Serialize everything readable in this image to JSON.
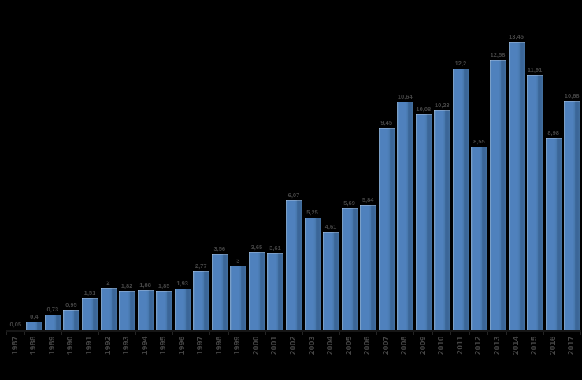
{
  "chart_data": {
    "type": "bar",
    "title": "",
    "xlabel": "",
    "ylabel": "",
    "ylim": [
      0,
      14
    ],
    "grid": false,
    "legend": null,
    "decimal_separator": ",",
    "categories": [
      "1987",
      "1988",
      "1989",
      "1990",
      "1991",
      "1992",
      "1993",
      "1994",
      "1995",
      "1996",
      "1997",
      "1998",
      "1999",
      "2000",
      "2001",
      "2002",
      "2003",
      "2004",
      "2005",
      "2006",
      "2007",
      "2008",
      "2009",
      "2010",
      "2011",
      "2012",
      "2013",
      "2014",
      "2015",
      "2016",
      "2017"
    ],
    "values": [
      0.05,
      0.4,
      0.73,
      0.95,
      1.51,
      2,
      1.82,
      1.88,
      1.85,
      1.93,
      2.77,
      3.56,
      3,
      3.65,
      3.61,
      6.07,
      5.25,
      4.61,
      5.69,
      5.84,
      9.45,
      10.64,
      10.08,
      10.23,
      12.2,
      8.55,
      12.58,
      13.45,
      11.91,
      8.98,
      10.68
    ],
    "value_labels": [
      "0,05",
      "0,4",
      "0,73",
      "0,95",
      "1,51",
      "2",
      "1,82",
      "1,88",
      "1,85",
      "1,93",
      "2,77",
      "3,56",
      "3",
      "3,65",
      "3,61",
      "6,07",
      "5,25",
      "4,61",
      "5,69",
      "5,84",
      "9,45",
      "10,64",
      "10,08",
      "10,23",
      "12,2",
      "8,55",
      "12,58",
      "13,45",
      "11,91",
      "8,98",
      "10,68"
    ],
    "colors": {
      "bar": "#4f81bd",
      "bar_dark": "#3b6698",
      "bar_light": "#6f97c1",
      "label": "#454545",
      "axis": "#161616",
      "background": "#000000"
    }
  }
}
